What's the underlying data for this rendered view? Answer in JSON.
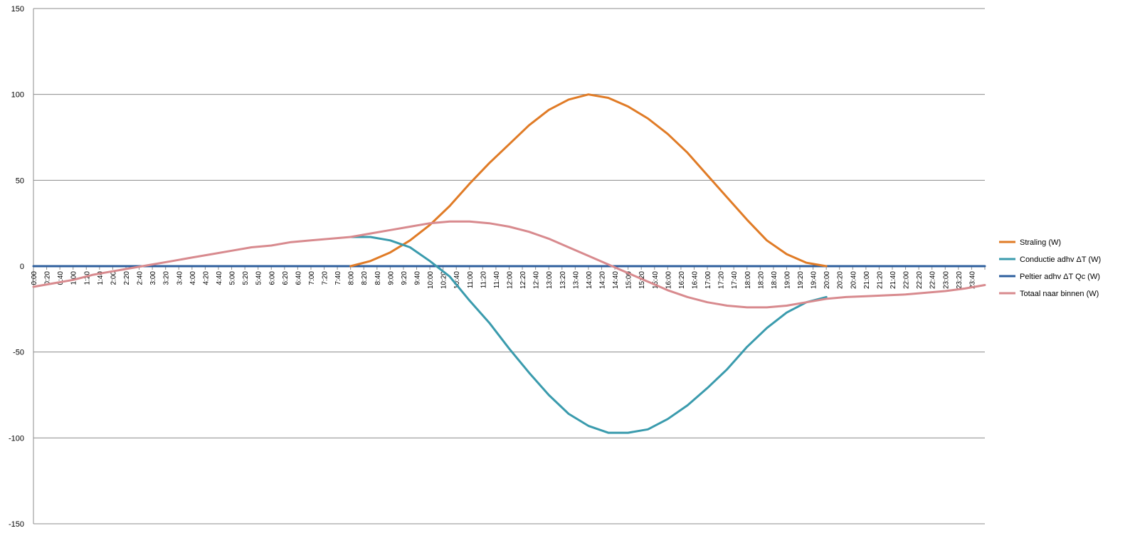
{
  "chart_data": {
    "type": "line",
    "title": "",
    "xlabel": "",
    "ylabel": "",
    "ylim": [
      -150,
      150
    ],
    "yticks": [
      150,
      100,
      50,
      0,
      -50,
      -100,
      -150
    ],
    "grid": true,
    "legend_position": "right",
    "x_tick_labels": [
      "0:00",
      "0:20",
      "0:40",
      "1:00",
      "1:20",
      "1:40",
      "2:00",
      "2:20",
      "2:40",
      "3:00",
      "3:20",
      "3:40",
      "4:00",
      "4:20",
      "4:40",
      "5:00",
      "5:20",
      "5:40",
      "6:00",
      "6:20",
      "6:40",
      "7:00",
      "7:20",
      "7:40",
      "8:00",
      "8:20",
      "8:40",
      "9:00",
      "9:20",
      "9:40",
      "10:00",
      "10:20",
      "10:40",
      "11:00",
      "11:20",
      "11:40",
      "12:00",
      "12:20",
      "12:40",
      "13:00",
      "13:20",
      "13:40",
      "14:00",
      "14:20",
      "14:40",
      "15:00",
      "15:20",
      "15:40",
      "16:00",
      "16:20",
      "16:40",
      "17:00",
      "17:20",
      "17:40",
      "18:00",
      "18:20",
      "18:40",
      "19:00",
      "19:20",
      "19:40",
      "20:00",
      "20:20",
      "20:40",
      "21:00",
      "21:20",
      "21:40",
      "22:00",
      "22:20",
      "22:40",
      "23:00",
      "23:20",
      "23:40"
    ],
    "series": [
      {
        "name": "Straling (W)",
        "color": "#E07B26",
        "points": [
          [
            8.0,
            0
          ],
          [
            8.5,
            3
          ],
          [
            9.0,
            8
          ],
          [
            9.5,
            15
          ],
          [
            10.0,
            24
          ],
          [
            10.5,
            35
          ],
          [
            11.0,
            48
          ],
          [
            11.5,
            60
          ],
          [
            12.0,
            71
          ],
          [
            12.5,
            82
          ],
          [
            13.0,
            91
          ],
          [
            13.5,
            97
          ],
          [
            14.0,
            100
          ],
          [
            14.5,
            98
          ],
          [
            15.0,
            93
          ],
          [
            15.5,
            86
          ],
          [
            16.0,
            77
          ],
          [
            16.5,
            66
          ],
          [
            17.0,
            53
          ],
          [
            17.5,
            40
          ],
          [
            18.0,
            27
          ],
          [
            18.5,
            15
          ],
          [
            19.0,
            7
          ],
          [
            19.5,
            2
          ],
          [
            20.0,
            0
          ]
        ]
      },
      {
        "name": "Conductie adhv ΔT (W)",
        "color": "#3A9BAD",
        "points": [
          [
            8.0,
            17
          ],
          [
            8.5,
            17
          ],
          [
            9.0,
            15
          ],
          [
            9.5,
            11
          ],
          [
            10.0,
            3
          ],
          [
            10.5,
            -6
          ],
          [
            11.0,
            -20
          ],
          [
            11.5,
            -33
          ],
          [
            12.0,
            -48
          ],
          [
            12.5,
            -62
          ],
          [
            13.0,
            -75
          ],
          [
            13.5,
            -86
          ],
          [
            14.0,
            -93
          ],
          [
            14.5,
            -97
          ],
          [
            15.0,
            -97
          ],
          [
            15.5,
            -95
          ],
          [
            16.0,
            -89
          ],
          [
            16.5,
            -81
          ],
          [
            17.0,
            -71
          ],
          [
            17.5,
            -60
          ],
          [
            18.0,
            -47
          ],
          [
            18.5,
            -36
          ],
          [
            19.0,
            -27
          ],
          [
            19.5,
            -21
          ],
          [
            20.0,
            -18
          ]
        ]
      },
      {
        "name": "Peltier adhv ΔT Qc (W)",
        "color": "#2E5F9E",
        "points": [
          [
            0,
            0
          ],
          [
            24,
            0
          ]
        ]
      },
      {
        "name": "Totaal naar binnen (W)",
        "color": "#D88A8E",
        "points": [
          [
            0.0,
            -12
          ],
          [
            0.5,
            -10
          ],
          [
            1.0,
            -8
          ],
          [
            1.5,
            -5
          ],
          [
            2.0,
            -3
          ],
          [
            2.5,
            -1
          ],
          [
            3.0,
            1
          ],
          [
            3.5,
            3
          ],
          [
            4.0,
            5
          ],
          [
            4.5,
            7
          ],
          [
            5.0,
            9
          ],
          [
            5.5,
            11
          ],
          [
            6.0,
            12
          ],
          [
            6.5,
            14
          ],
          [
            7.0,
            15
          ],
          [
            7.5,
            16
          ],
          [
            8.0,
            17
          ],
          [
            8.5,
            19
          ],
          [
            9.0,
            21
          ],
          [
            9.5,
            23
          ],
          [
            10.0,
            25
          ],
          [
            10.5,
            26
          ],
          [
            11.0,
            26
          ],
          [
            11.5,
            25
          ],
          [
            12.0,
            23
          ],
          [
            12.5,
            20
          ],
          [
            13.0,
            16
          ],
          [
            13.5,
            11
          ],
          [
            14.0,
            6
          ],
          [
            14.5,
            1
          ],
          [
            15.0,
            -4
          ],
          [
            15.5,
            -9
          ],
          [
            16.0,
            -14
          ],
          [
            16.5,
            -18
          ],
          [
            17.0,
            -21
          ],
          [
            17.5,
            -23
          ],
          [
            18.0,
            -24
          ],
          [
            18.5,
            -24
          ],
          [
            19.0,
            -23
          ],
          [
            19.5,
            -21
          ],
          [
            20.0,
            -19
          ],
          [
            20.5,
            -18
          ],
          [
            21.0,
            -17.5
          ],
          [
            21.5,
            -17
          ],
          [
            22.0,
            -16.5
          ],
          [
            22.5,
            -15.5
          ],
          [
            23.0,
            -14.5
          ],
          [
            23.5,
            -13
          ],
          [
            24.0,
            -11
          ]
        ]
      }
    ]
  }
}
